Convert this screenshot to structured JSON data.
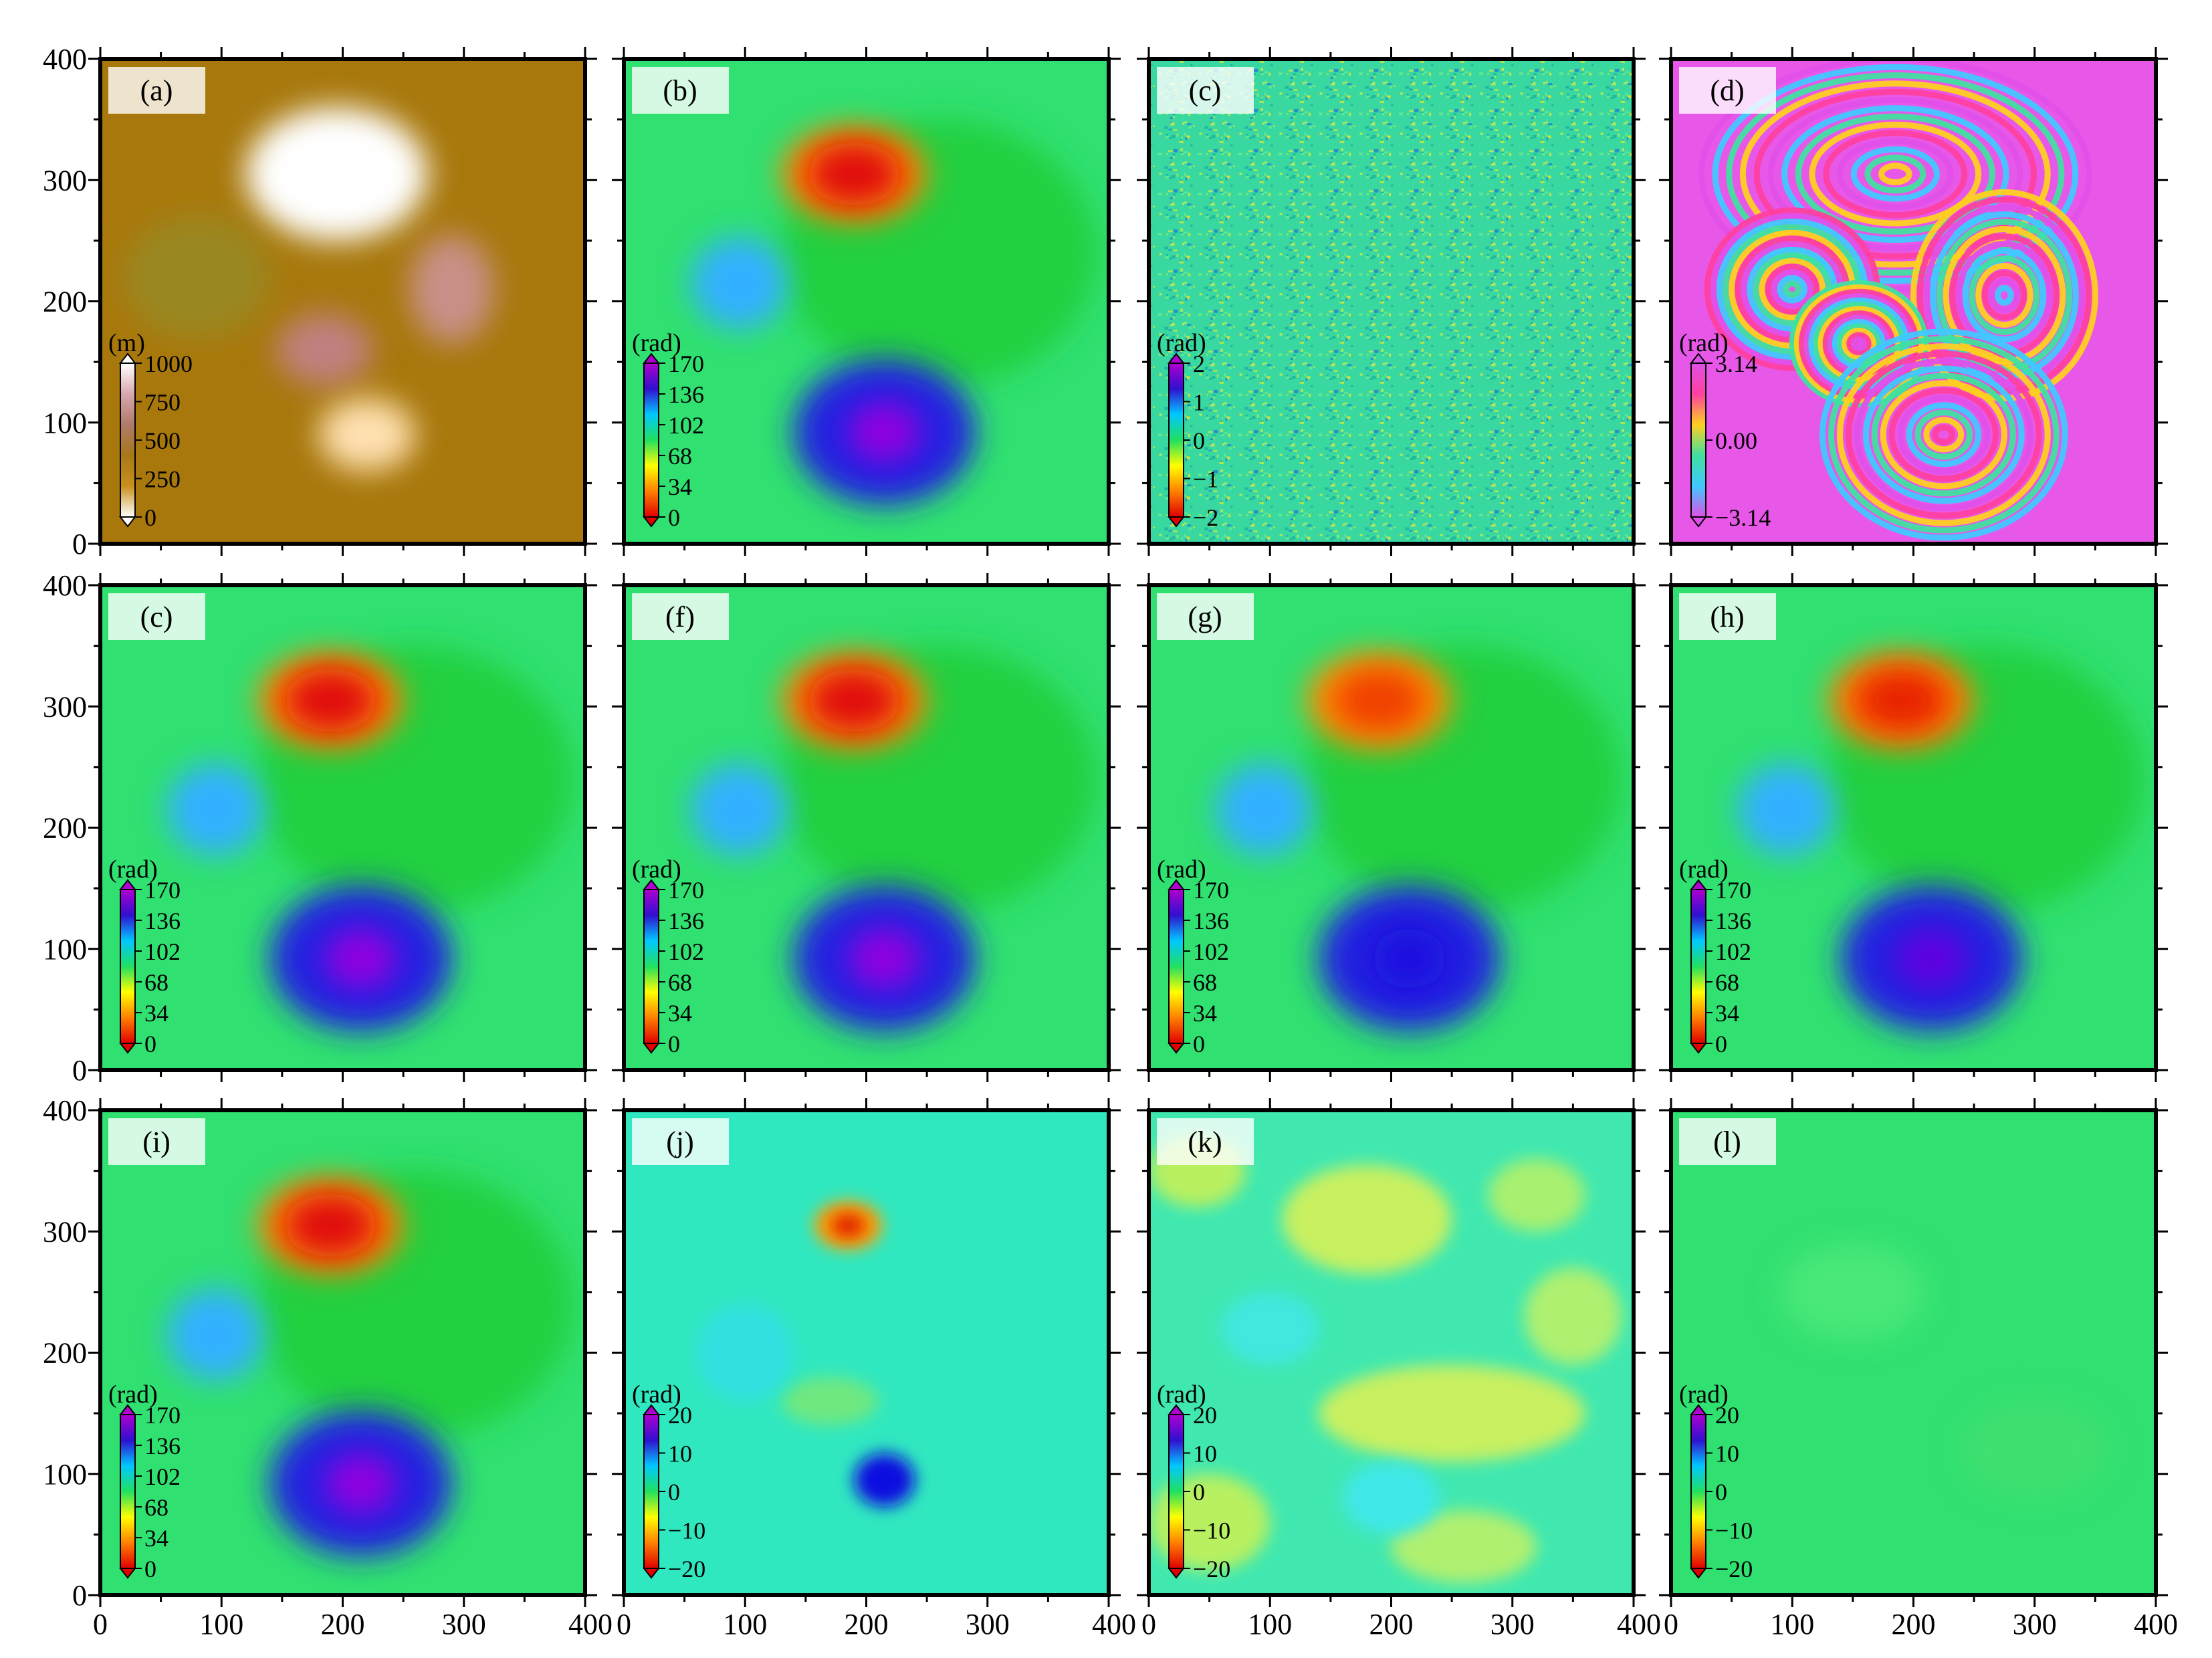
{
  "figure": {
    "grid": {
      "rows": 3,
      "cols": 4
    },
    "axis_ticks": {
      "y_labels": [
        "0",
        "100",
        "200",
        "300",
        "400"
      ],
      "x_labels": [
        "0",
        "100",
        "200",
        "300",
        "400"
      ],
      "x_corner_labels": [
        "400",
        "0"
      ]
    }
  },
  "colormaps": {
    "terrain": [
      "#ffffff",
      "#d8a8b0",
      "#b07a6a",
      "#a87818",
      "#c8901c",
      "#ffffff"
    ],
    "jet": [
      "#b000d0",
      "#3010d0",
      "#00c8ff",
      "#20e060",
      "#ffff00",
      "#ff8000",
      "#e00000"
    ],
    "cyclic": [
      "#e050e8",
      "#ff40a0",
      "#ffd020",
      "#40e0a0",
      "#40c8ff",
      "#e050e8"
    ]
  },
  "chart_data": [
    {
      "type": "heatmap",
      "label": "(a)",
      "kind": "terrain",
      "bg": "#a8780c",
      "x_range": [
        0,
        400
      ],
      "y_range": [
        0,
        400
      ],
      "colorbar": {
        "unit": "(m)",
        "ticks": [
          "1000",
          "750",
          "500",
          "250",
          "0"
        ],
        "cmap": "terrain"
      },
      "blobs": [
        {
          "x": 195,
          "y": 305,
          "rx": 75,
          "ry": 55,
          "color": "#ffffff"
        },
        {
          "x": 290,
          "y": 210,
          "rx": 35,
          "ry": 45,
          "color": "#c89088"
        },
        {
          "x": 185,
          "y": 160,
          "rx": 40,
          "ry": 30,
          "color": "#c08080"
        },
        {
          "x": 220,
          "y": 90,
          "rx": 40,
          "ry": 30,
          "color": "#ffe0b0"
        },
        {
          "x": 80,
          "y": 220,
          "rx": 60,
          "ry": 50,
          "color": "#9a8820"
        }
      ]
    },
    {
      "type": "heatmap",
      "label": "(b)",
      "kind": "deform",
      "bg": "#30e070",
      "x_range": [
        0,
        400
      ],
      "y_range": [
        0,
        400
      ],
      "colorbar": {
        "unit": "(rad)",
        "ticks": [
          "170",
          "136",
          "102",
          "68",
          "34",
          "0"
        ],
        "cmap": "jet"
      },
      "blobs": [
        {
          "x": 260,
          "y": 240,
          "rx": 130,
          "ry": 110,
          "color": "#20d040"
        },
        {
          "x": 190,
          "y": 305,
          "rx": 60,
          "ry": 40,
          "color": "#ff8000"
        },
        {
          "x": 190,
          "y": 305,
          "rx": 38,
          "ry": 26,
          "color": "#e01010"
        },
        {
          "x": 95,
          "y": 215,
          "rx": 40,
          "ry": 38,
          "color": "#30b0ff"
        },
        {
          "x": 215,
          "y": 92,
          "rx": 75,
          "ry": 60,
          "color": "#2020e0"
        },
        {
          "x": 215,
          "y": 92,
          "rx": 30,
          "ry": 25,
          "color": "#9000e0"
        }
      ]
    },
    {
      "type": "heatmap",
      "label": "(c)",
      "kind": "noise",
      "bg": "#30d8a0",
      "x_range": [
        0,
        400
      ],
      "y_range": [
        0,
        400
      ],
      "colorbar": {
        "unit": "(rad)",
        "ticks": [
          "2",
          "1",
          "0",
          "−1",
          "−2"
        ],
        "cmap": "jet"
      },
      "blobs": []
    },
    {
      "type": "heatmap",
      "label": "(d)",
      "kind": "fringes",
      "bg": "#e858e8",
      "x_range": [
        0,
        400
      ],
      "y_range": [
        0,
        400
      ],
      "colorbar": {
        "unit": "(rad)",
        "ticks": [
          "3.14",
          "0.00",
          "−3.14"
        ],
        "cmap": "cyclic"
      },
      "blobs": [
        {
          "x": 185,
          "y": 305,
          "rx": 160,
          "ry": 95,
          "color": "#ffffff"
        },
        {
          "x": 100,
          "y": 210,
          "rx": 70,
          "ry": 65,
          "color": "#ffffff"
        },
        {
          "x": 275,
          "y": 205,
          "rx": 75,
          "ry": 85,
          "color": "#ffffff"
        },
        {
          "x": 155,
          "y": 165,
          "rx": 55,
          "ry": 50,
          "color": "#ffffff"
        },
        {
          "x": 225,
          "y": 90,
          "rx": 100,
          "ry": 85,
          "color": "#ffffff"
        }
      ]
    },
    {
      "type": "heatmap",
      "label": "(c)",
      "kind": "deform",
      "bg": "#30e070",
      "x_range": [
        0,
        400
      ],
      "y_range": [
        0,
        400
      ],
      "colorbar": {
        "unit": "(rad)",
        "ticks": [
          "170",
          "136",
          "102",
          "68",
          "34",
          "0"
        ],
        "cmap": "jet"
      },
      "blobs": [
        {
          "x": 260,
          "y": 240,
          "rx": 130,
          "ry": 110,
          "color": "#20d040"
        },
        {
          "x": 190,
          "y": 305,
          "rx": 60,
          "ry": 40,
          "color": "#ff8000"
        },
        {
          "x": 190,
          "y": 305,
          "rx": 38,
          "ry": 26,
          "color": "#e01010"
        },
        {
          "x": 95,
          "y": 215,
          "rx": 40,
          "ry": 38,
          "color": "#30b0ff"
        },
        {
          "x": 215,
          "y": 92,
          "rx": 75,
          "ry": 60,
          "color": "#2020e0"
        },
        {
          "x": 215,
          "y": 92,
          "rx": 30,
          "ry": 25,
          "color": "#9000e0"
        }
      ]
    },
    {
      "type": "heatmap",
      "label": "(f)",
      "kind": "deform",
      "bg": "#30e070",
      "x_range": [
        0,
        400
      ],
      "y_range": [
        0,
        400
      ],
      "colorbar": {
        "unit": "(rad)",
        "ticks": [
          "170",
          "136",
          "102",
          "68",
          "34",
          "0"
        ],
        "cmap": "jet"
      },
      "blobs": [
        {
          "x": 260,
          "y": 240,
          "rx": 130,
          "ry": 110,
          "color": "#20d040"
        },
        {
          "x": 190,
          "y": 305,
          "rx": 60,
          "ry": 40,
          "color": "#ff8000"
        },
        {
          "x": 190,
          "y": 305,
          "rx": 38,
          "ry": 26,
          "color": "#e01010"
        },
        {
          "x": 95,
          "y": 215,
          "rx": 40,
          "ry": 38,
          "color": "#30b0ff"
        },
        {
          "x": 215,
          "y": 92,
          "rx": 75,
          "ry": 60,
          "color": "#2020e0"
        },
        {
          "x": 215,
          "y": 92,
          "rx": 30,
          "ry": 25,
          "color": "#9000e0"
        }
      ]
    },
    {
      "type": "heatmap",
      "label": "(g)",
      "kind": "deform",
      "bg": "#30e070",
      "x_range": [
        0,
        400
      ],
      "y_range": [
        0,
        400
      ],
      "colorbar": {
        "unit": "(rad)",
        "ticks": [
          "170",
          "136",
          "102",
          "68",
          "34",
          "0"
        ],
        "cmap": "jet"
      },
      "blobs": [
        {
          "x": 260,
          "y": 240,
          "rx": 130,
          "ry": 110,
          "color": "#20d040"
        },
        {
          "x": 190,
          "y": 305,
          "rx": 60,
          "ry": 40,
          "color": "#ff9000"
        },
        {
          "x": 190,
          "y": 305,
          "rx": 38,
          "ry": 26,
          "color": "#f04000"
        },
        {
          "x": 95,
          "y": 215,
          "rx": 40,
          "ry": 38,
          "color": "#30b0ff"
        },
        {
          "x": 215,
          "y": 92,
          "rx": 75,
          "ry": 60,
          "color": "#2020e0"
        },
        {
          "x": 215,
          "y": 92,
          "rx": 30,
          "ry": 25,
          "color": "#1a10e0"
        }
      ]
    },
    {
      "type": "heatmap",
      "label": "(h)",
      "kind": "deform",
      "bg": "#30e070",
      "x_range": [
        0,
        400
      ],
      "y_range": [
        0,
        400
      ],
      "colorbar": {
        "unit": "(rad)",
        "ticks": [
          "170",
          "136",
          "102",
          "68",
          "34",
          "0"
        ],
        "cmap": "jet"
      },
      "blobs": [
        {
          "x": 260,
          "y": 240,
          "rx": 130,
          "ry": 110,
          "color": "#20d040"
        },
        {
          "x": 190,
          "y": 305,
          "rx": 60,
          "ry": 40,
          "color": "#ff8000"
        },
        {
          "x": 190,
          "y": 305,
          "rx": 38,
          "ry": 26,
          "color": "#e82000"
        },
        {
          "x": 95,
          "y": 215,
          "rx": 40,
          "ry": 38,
          "color": "#30b0ff"
        },
        {
          "x": 215,
          "y": 92,
          "rx": 75,
          "ry": 60,
          "color": "#2020e0"
        },
        {
          "x": 215,
          "y": 92,
          "rx": 30,
          "ry": 25,
          "color": "#6000e0"
        }
      ]
    },
    {
      "type": "heatmap",
      "label": "(i)",
      "kind": "deform",
      "bg": "#30e070",
      "x_range": [
        0,
        400
      ],
      "y_range": [
        0,
        400
      ],
      "colorbar": {
        "unit": "(rad)",
        "ticks": [
          "170",
          "136",
          "102",
          "68",
          "34",
          "0"
        ],
        "cmap": "jet"
      },
      "blobs": [
        {
          "x": 260,
          "y": 240,
          "rx": 130,
          "ry": 110,
          "color": "#20d040"
        },
        {
          "x": 190,
          "y": 305,
          "rx": 60,
          "ry": 40,
          "color": "#ff8000"
        },
        {
          "x": 190,
          "y": 305,
          "rx": 38,
          "ry": 26,
          "color": "#e01010"
        },
        {
          "x": 95,
          "y": 215,
          "rx": 40,
          "ry": 38,
          "color": "#30b0ff"
        },
        {
          "x": 215,
          "y": 92,
          "rx": 75,
          "ry": 60,
          "color": "#2020e0"
        },
        {
          "x": 215,
          "y": 92,
          "rx": 30,
          "ry": 25,
          "color": "#9000e0"
        }
      ]
    },
    {
      "type": "heatmap",
      "label": "(j)",
      "kind": "residual",
      "bg": "#30e8c0",
      "x_range": [
        0,
        400
      ],
      "y_range": [
        0,
        400
      ],
      "colorbar": {
        "unit": "(rad)",
        "ticks": [
          "20",
          "10",
          "0",
          "−10",
          "−20"
        ],
        "cmap": "jet"
      },
      "blobs": [
        {
          "x": 185,
          "y": 305,
          "rx": 28,
          "ry": 20,
          "color": "#ffa000"
        },
        {
          "x": 185,
          "y": 305,
          "rx": 14,
          "ry": 10,
          "color": "#e02000"
        },
        {
          "x": 215,
          "y": 95,
          "rx": 25,
          "ry": 22,
          "color": "#1010e0"
        },
        {
          "x": 170,
          "y": 160,
          "rx": 40,
          "ry": 20,
          "color": "#70e880"
        },
        {
          "x": 100,
          "y": 200,
          "rx": 40,
          "ry": 40,
          "color": "#30e0e0"
        }
      ]
    },
    {
      "type": "heatmap",
      "label": "(k)",
      "kind": "residual",
      "bg": "#40e8b0",
      "x_range": [
        0,
        400
      ],
      "y_range": [
        0,
        400
      ],
      "colorbar": {
        "unit": "(rad)",
        "ticks": [
          "20",
          "10",
          "0",
          "−10",
          "−20"
        ],
        "cmap": "jet"
      },
      "blobs": [
        {
          "x": 180,
          "y": 310,
          "rx": 70,
          "ry": 45,
          "color": "#c8f060"
        },
        {
          "x": 40,
          "y": 350,
          "rx": 40,
          "ry": 30,
          "color": "#b8f060"
        },
        {
          "x": 320,
          "y": 330,
          "rx": 40,
          "ry": 30,
          "color": "#a8f070"
        },
        {
          "x": 250,
          "y": 150,
          "rx": 110,
          "ry": 40,
          "color": "#c8f060"
        },
        {
          "x": 350,
          "y": 230,
          "rx": 40,
          "ry": 40,
          "color": "#b0f070"
        },
        {
          "x": 50,
          "y": 60,
          "rx": 50,
          "ry": 40,
          "color": "#b8f060"
        },
        {
          "x": 260,
          "y": 40,
          "rx": 60,
          "ry": 30,
          "color": "#b0f070"
        },
        {
          "x": 100,
          "y": 220,
          "rx": 40,
          "ry": 30,
          "color": "#40e8e0"
        },
        {
          "x": 200,
          "y": 80,
          "rx": 40,
          "ry": 30,
          "color": "#40e8e8"
        }
      ]
    },
    {
      "type": "heatmap",
      "label": "(l)",
      "kind": "flat",
      "bg": "#30e070",
      "x_range": [
        0,
        400
      ],
      "y_range": [
        0,
        400
      ],
      "colorbar": {
        "unit": "(rad)",
        "ticks": [
          "20",
          "10",
          "0",
          "−10",
          "−20"
        ],
        "cmap": "jet"
      },
      "blobs": [
        {
          "x": 150,
          "y": 250,
          "rx": 60,
          "ry": 40,
          "color": "#48e878"
        },
        {
          "x": 300,
          "y": 120,
          "rx": 60,
          "ry": 40,
          "color": "#40e070"
        }
      ]
    }
  ]
}
